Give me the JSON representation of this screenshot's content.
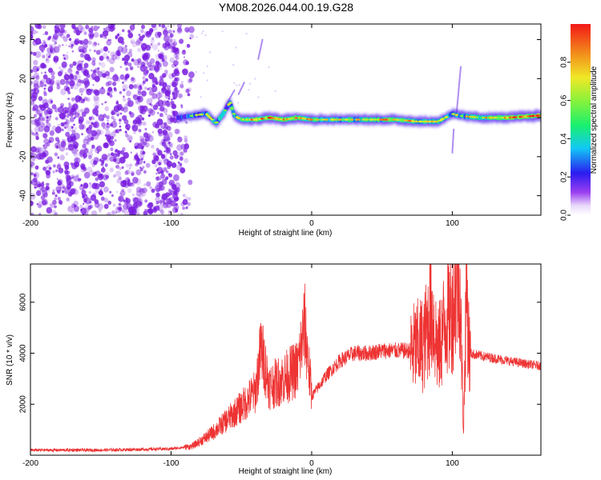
{
  "figure_title": "YM08.2026.044.00.19.G28",
  "colors": {
    "snr_line": "#ee3333",
    "axis": "#000000",
    "background": "#ffffff",
    "noise_dots": "#7b1fe0",
    "ridge_low": "#2222ff",
    "ridge_mid": "#22ff44",
    "ridge_high": "#ff2222"
  },
  "chart_data": [
    {
      "id": "spectrogram",
      "type": "heatmap",
      "xlabel": "Height of straight line (km)",
      "ylabel": "Frequency (Hz)",
      "xlim": [
        -200,
        163
      ],
      "ylim": [
        -50,
        48
      ],
      "x_ticks": [
        -200,
        -100,
        0,
        100
      ],
      "y_ticks": [
        -40,
        -20,
        0,
        20,
        40
      ],
      "noise_region_x": [
        -200,
        -85
      ],
      "ridge": [
        {
          "x": -95,
          "f": 0,
          "amp": 0.25
        },
        {
          "x": -85,
          "f": 1,
          "amp": 0.35
        },
        {
          "x": -75,
          "f": 2,
          "amp": 0.45
        },
        {
          "x": -68,
          "f": -3,
          "amp": 0.55
        },
        {
          "x": -62,
          "f": 3,
          "amp": 0.5
        },
        {
          "x": -58,
          "f": 8,
          "amp": 0.45
        },
        {
          "x": -55,
          "f": 1,
          "amp": 0.55
        },
        {
          "x": -50,
          "f": -1,
          "amp": 0.6
        },
        {
          "x": -40,
          "f": -1,
          "amp": 0.7
        },
        {
          "x": -30,
          "f": 0,
          "amp": 0.8
        },
        {
          "x": -20,
          "f": -1,
          "amp": 0.75
        },
        {
          "x": -10,
          "f": 0,
          "amp": 0.7
        },
        {
          "x": 0,
          "f": -1,
          "amp": 0.6
        },
        {
          "x": 20,
          "f": -1,
          "amp": 0.55
        },
        {
          "x": 40,
          "f": -1,
          "amp": 0.55
        },
        {
          "x": 60,
          "f": -1,
          "amp": 0.7
        },
        {
          "x": 75,
          "f": -2,
          "amp": 0.6
        },
        {
          "x": 90,
          "f": -2,
          "amp": 0.55
        },
        {
          "x": 100,
          "f": 2,
          "amp": 0.45
        },
        {
          "x": 105,
          "f": 1,
          "amp": 0.5
        },
        {
          "x": 120,
          "f": 0,
          "amp": 0.6
        },
        {
          "x": 140,
          "f": 0,
          "amp": 0.7
        },
        {
          "x": 160,
          "f": 1,
          "amp": 0.85
        }
      ],
      "colorbar": {
        "label": "Normalized spectral amplitude",
        "ticks": [
          0.0,
          0.2,
          0.4,
          0.6,
          0.8
        ],
        "tick_labels": [
          "0.0",
          "0.2",
          "0.4",
          "0.6",
          "0.8"
        ],
        "range": [
          0,
          1
        ]
      }
    },
    {
      "id": "snr",
      "type": "line",
      "xlabel": "Height of straight line (km)",
      "ylabel": "SNR (10 * v/v)",
      "xlim": [
        -200,
        163
      ],
      "ylim": [
        0,
        7500
      ],
      "x_ticks": [
        -200,
        -100,
        0,
        100
      ],
      "y_ticks": [
        2000,
        4000,
        6000
      ],
      "series": [
        {
          "name": "SNR",
          "x": [
            -200,
            -150,
            -100,
            -85,
            -75,
            -70,
            -60,
            -50,
            -40,
            -36,
            -30,
            -20,
            -10,
            -5,
            0,
            10,
            20,
            30,
            40,
            50,
            60,
            70,
            80,
            85,
            90,
            95,
            100,
            105,
            108,
            110,
            112,
            120,
            130,
            140,
            150,
            163
          ],
          "y": [
            200,
            200,
            250,
            350,
            700,
            900,
            1400,
            1900,
            2500,
            4200,
            2700,
            3000,
            3400,
            5100,
            2300,
            3100,
            3700,
            4000,
            4000,
            4100,
            4100,
            4100,
            4400,
            5800,
            4000,
            5300,
            5700,
            7300,
            1000,
            6900,
            4000,
            3900,
            3800,
            3700,
            3600,
            3500
          ]
        }
      ]
    }
  ]
}
